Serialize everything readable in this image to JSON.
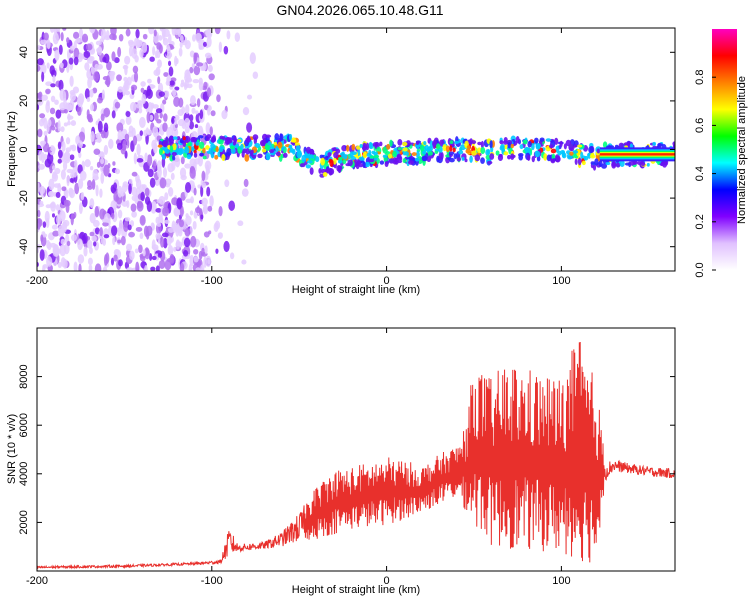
{
  "figure_title": "GN04.2026.065.10.48.G11",
  "chart_data": [
    {
      "type": "heatmap",
      "title": "GN04.2026.065.10.48.G11",
      "xlabel": "Height of straight line (km)",
      "ylabel": "Frequency (Hz)",
      "xlim": [
        -200,
        165
      ],
      "ylim": [
        -50,
        50
      ],
      "xticks": [
        -200,
        -100,
        0,
        100
      ],
      "yticks": [
        -40,
        -20,
        0,
        20,
        40
      ],
      "colorbar": {
        "label": "Normalized spectral amplitude",
        "range": [
          0,
          1
        ],
        "ticks": [
          "0.0",
          "0.2",
          "0.4",
          "0.6",
          "0.8"
        ],
        "tick_values": [
          0.0,
          0.2,
          0.4,
          0.6,
          0.8
        ],
        "colormap": [
          "#ffffff",
          "#e0c0ff",
          "#8000ff",
          "#0000ff",
          "#00ffff",
          "#00ff00",
          "#ffff00",
          "#ff8000",
          "#ff0000",
          "#ff00c0"
        ]
      },
      "ridge": {
        "x": [
          -130,
          -110,
          -90,
          -70,
          -55,
          -48,
          -42,
          -38,
          -30,
          -20,
          -10,
          0,
          10,
          20,
          30,
          40,
          50,
          60,
          70,
          80,
          90,
          100,
          110,
          120,
          130,
          165
        ],
        "frequency_hz": [
          0,
          1,
          1,
          1,
          1,
          -2,
          -5,
          -7,
          -4,
          -3,
          -2,
          -2,
          -1,
          -1,
          0,
          0,
          0,
          -1,
          0,
          0,
          0,
          -1,
          -2,
          -3,
          -2,
          -2
        ]
      }
    },
    {
      "type": "line",
      "xlabel": "Height of straight line (km)",
      "ylabel": "SNR (10 * v/v)",
      "xlim": [
        -200,
        165
      ],
      "ylim": [
        0,
        10000
      ],
      "xticks": [
        -200,
        -100,
        0,
        100
      ],
      "yticks": [
        2000,
        4000,
        6000,
        8000
      ],
      "series": [
        {
          "name": "SNR",
          "color": "#e8302c",
          "envelope": {
            "x": [
              -200,
              -150,
              -110,
              -95,
              -90,
              -85,
              -70,
              -60,
              -50,
              -40,
              -30,
              -20,
              -10,
              0,
              10,
              20,
              30,
              40,
              45,
              50,
              55,
              60,
              70,
              80,
              90,
              100,
              110,
              115,
              120,
              125,
              130,
              140,
              150,
              165
            ],
            "low": [
              100,
              150,
              250,
              300,
              600,
              800,
              900,
              1000,
              1200,
              1300,
              1500,
              1700,
              1800,
              1900,
              2100,
              2400,
              2700,
              3000,
              2500,
              1800,
              1500,
              1000,
              900,
              800,
              800,
              700,
              400,
              300,
              300,
              3700,
              4100,
              4000,
              3900,
              3800
            ],
            "high": [
              200,
              250,
              350,
              450,
              1800,
              1100,
              1200,
              1600,
              2400,
              3500,
              4200,
              4300,
              4500,
              4700,
              4600,
              4300,
              4800,
              5200,
              6000,
              8600,
              8200,
              8000,
              8700,
              8400,
              8200,
              8000,
              9800,
              8500,
              8000,
              4500,
              4600,
              4400,
              4300,
              4200
            ]
          }
        }
      ]
    }
  ]
}
